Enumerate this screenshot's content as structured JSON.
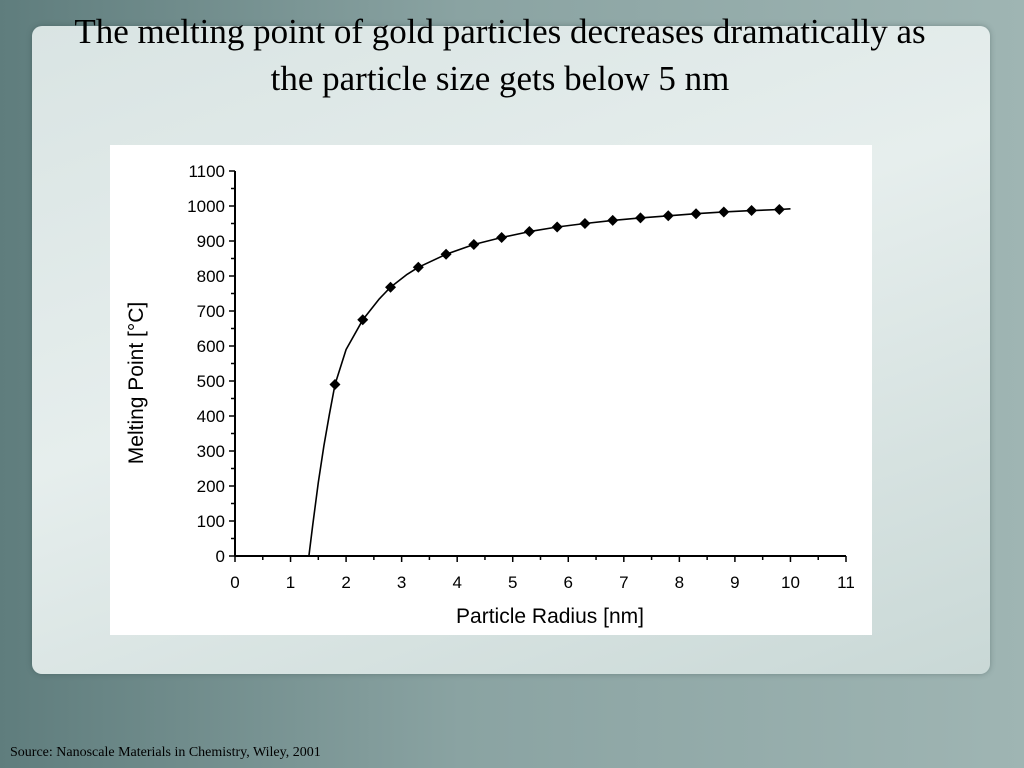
{
  "slide": {
    "title_line1": "The melting point of gold particles decreases dramatically as",
    "title_line2": "the particle size gets below 5 nm",
    "source": "Source: Nanoscale Materials in Chemistry, Wiley, 2001"
  },
  "chart_data": {
    "type": "line",
    "title": "",
    "xlabel": "Particle Radius [nm]",
    "ylabel": "Melting Point [°C]",
    "xlim": [
      0,
      11
    ],
    "ylim": [
      0,
      1100
    ],
    "xticks": [
      "0",
      "1",
      "2",
      "3",
      "4",
      "5",
      "6",
      "7",
      "8",
      "9",
      "10",
      "11"
    ],
    "yticks": [
      "0",
      "100",
      "200",
      "300",
      "400",
      "500",
      "600",
      "700",
      "800",
      "900",
      "1000",
      "1100"
    ],
    "grid": false,
    "legend": "none",
    "points": {
      "x": [
        1.8,
        2.3,
        2.8,
        3.3,
        3.8,
        4.3,
        4.8,
        5.3,
        5.8,
        6.3,
        6.8,
        7.3,
        7.8,
        8.3,
        8.8,
        9.3,
        9.8
      ],
      "y": [
        490,
        675,
        768,
        825,
        862,
        890,
        910,
        927,
        940,
        950,
        959,
        966,
        972,
        978,
        983,
        987,
        990
      ]
    },
    "fit_curve": {
      "x": [
        1.33,
        1.4,
        1.5,
        1.6,
        1.7,
        1.8,
        2.0,
        2.3,
        2.6,
        2.8,
        3.1,
        3.3,
        3.8,
        4.3,
        4.8,
        5.3,
        5.8,
        6.3,
        6.8,
        7.3,
        7.8,
        8.3,
        8.8,
        9.3,
        9.8,
        10.0
      ],
      "y": [
        0,
        90,
        210,
        315,
        405,
        490,
        590,
        675,
        735,
        768,
        805,
        825,
        862,
        890,
        910,
        927,
        940,
        950,
        959,
        966,
        972,
        978,
        983,
        987,
        990,
        992
      ]
    },
    "marker": "diamond",
    "line_color": "#000000",
    "marker_color": "#000000"
  }
}
